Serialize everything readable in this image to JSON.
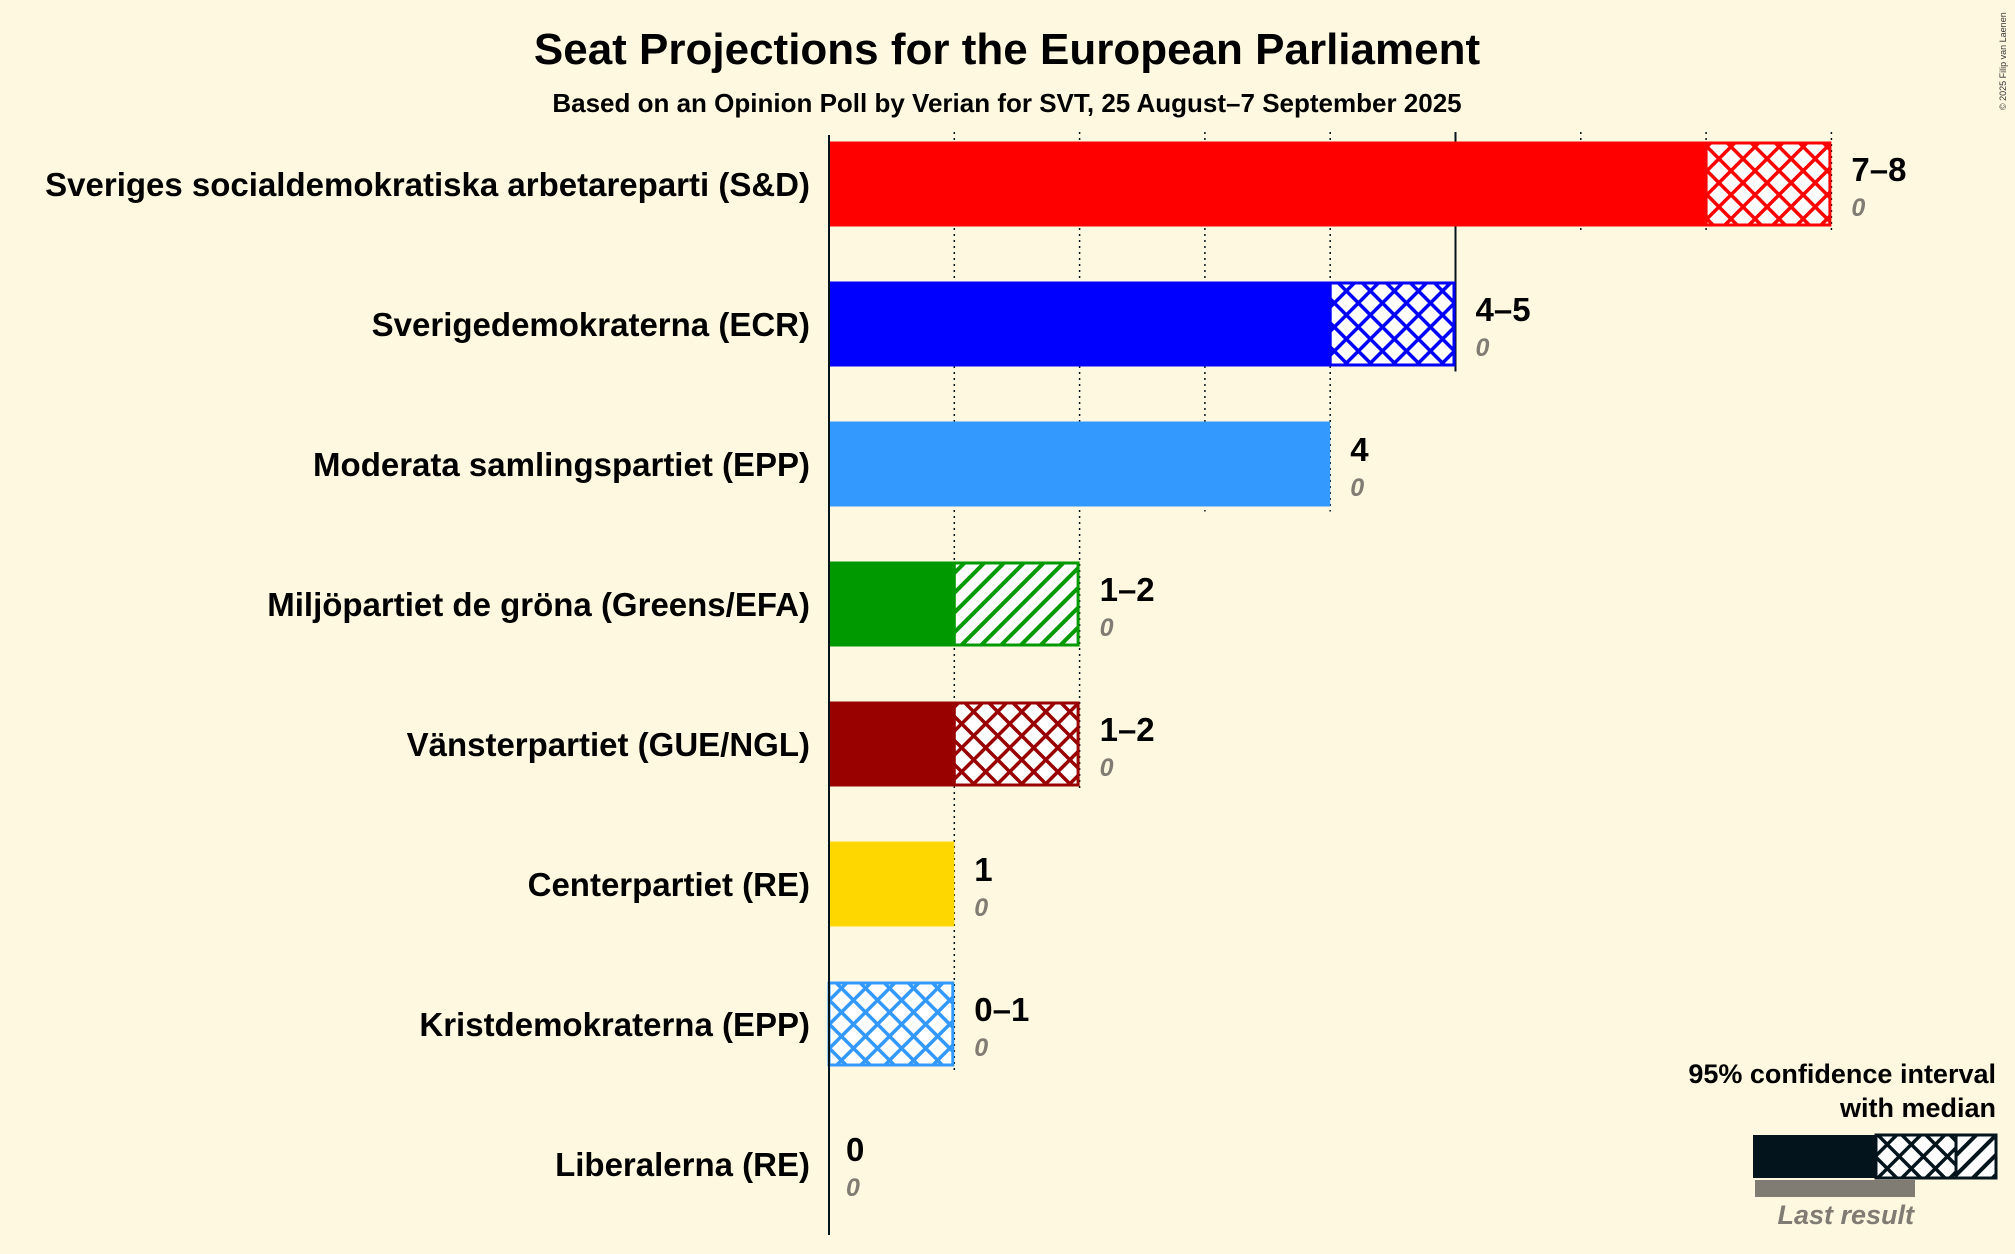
{
  "chart_data": {
    "type": "bar",
    "title": "Seat Projections for the European Parliament",
    "subtitle": "Based on an Opinion Poll by Verian for SVT, 25 August–7 September 2025",
    "copyright": "© 2025 Filip van Laenen",
    "xlim": [
      0,
      8
    ],
    "parties": [
      {
        "name": "Sveriges socialdemokratiska arbetareparti (S&D)",
        "low": 7,
        "median": 8,
        "high": 8,
        "label": "7–8",
        "last": 0,
        "last_label": "0",
        "color": "#FF0000"
      },
      {
        "name": "Sverigedemokraterna (ECR)",
        "low": 4,
        "median": 5,
        "high": 5,
        "label": "4–5",
        "last": 0,
        "last_label": "0",
        "color": "#0000FF"
      },
      {
        "name": "Moderata samlingspartiet (EPP)",
        "low": 4,
        "median": 4,
        "high": 4,
        "label": "4",
        "last": 0,
        "last_label": "0",
        "color": "#3399FF"
      },
      {
        "name": "Miljöpartiet de gröna (Greens/EFA)",
        "low": 1,
        "median": 1,
        "high": 2,
        "label": "1–2",
        "last": 0,
        "last_label": "0",
        "color": "#009900"
      },
      {
        "name": "Vänsterpartiet (GUE/NGL)",
        "low": 1,
        "median": 2,
        "high": 2,
        "label": "1–2",
        "last": 0,
        "last_label": "0",
        "color": "#990000"
      },
      {
        "name": "Centerpartiet (RE)",
        "low": 1,
        "median": 1,
        "high": 1,
        "label": "1",
        "last": 0,
        "last_label": "0",
        "color": "#FFD700"
      },
      {
        "name": "Kristdemokraterna (EPP)",
        "low": 0,
        "median": 1,
        "high": 1,
        "label": "0–1",
        "last": 0,
        "last_label": "0",
        "color": "#3399FF"
      },
      {
        "name": "Liberalerna (RE)",
        "low": 0,
        "median": 0,
        "high": 0,
        "label": "0",
        "last": 0,
        "last_label": "0",
        "color": "#3399FF"
      }
    ],
    "legend": {
      "line1": "95% confidence interval",
      "line2": "with median",
      "last_result": "Last result",
      "placement": "bottom-right"
    }
  }
}
